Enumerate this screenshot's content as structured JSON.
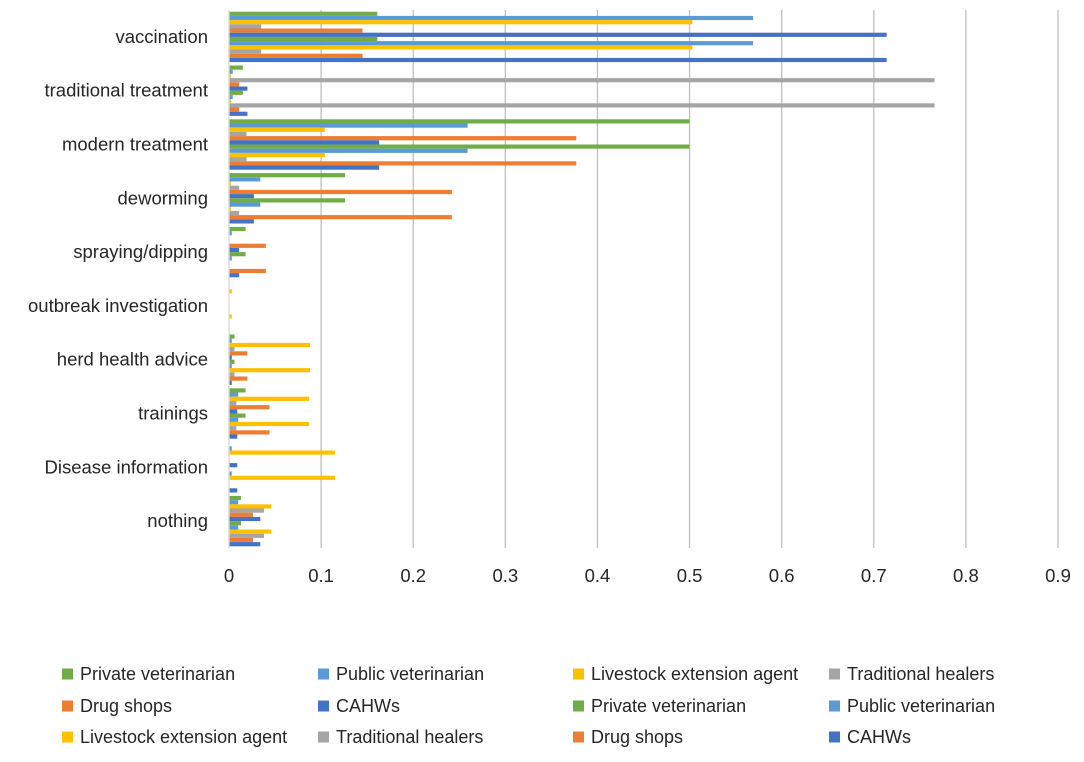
{
  "chart_data": {
    "type": "bar",
    "orientation": "horizontal",
    "title": "",
    "xlabel": "",
    "ylabel": "",
    "xlim": [
      0,
      0.9
    ],
    "x_ticks": [
      0,
      0.1,
      0.2,
      0.3,
      0.4,
      0.5,
      0.6,
      0.7,
      0.8,
      0.9
    ],
    "x_tick_labels": [
      "0",
      "0.1",
      "0.2",
      "0.3",
      "0.4",
      "0.5",
      "0.6",
      "0.7",
      "0.8",
      "0.9"
    ],
    "grid": "vertical",
    "legend_position": "bottom",
    "categories": [
      "vaccination",
      "traditional treatment",
      "modern treatment",
      "deworming",
      "spraying/dipping",
      "outbreak investigation",
      "herd health advice",
      "trainings",
      "Disease information",
      "nothing"
    ],
    "series": [
      {
        "name": "Private veterinarian",
        "color": "#70AD47",
        "values": [
          0.161,
          0.015,
          0.5,
          0.126,
          0.018,
          0.0,
          0.006,
          0.018,
          0.0,
          0.013
        ]
      },
      {
        "name": "Public veterinarian",
        "color": "#5B9BD5",
        "values": [
          0.569,
          0.004,
          0.259,
          0.034,
          0.003,
          0.0,
          0.003,
          0.01,
          0.003,
          0.01
        ]
      },
      {
        "name": "Livestock extension agent",
        "color": "#FFC000",
        "values": [
          0.503,
          0.002,
          0.104,
          0.002,
          0.0,
          0.003,
          0.088,
          0.087,
          0.115,
          0.046
        ]
      },
      {
        "name": "Traditional healers",
        "color": "#A5A5A5",
        "values": [
          0.035,
          0.766,
          0.019,
          0.011,
          0.0,
          0.0,
          0.006,
          0.008,
          0.0,
          0.038
        ]
      },
      {
        "name": "Drug shops",
        "color": "#ED7D31",
        "values": [
          0.145,
          0.011,
          0.377,
          0.242,
          0.04,
          0.0,
          0.02,
          0.044,
          0.0,
          0.026
        ]
      },
      {
        "name": "CAHWs",
        "color": "#4472C4",
        "values": [
          0.714,
          0.02,
          0.163,
          0.027,
          0.011,
          0.0,
          0.003,
          0.009,
          0.009,
          0.034
        ]
      },
      {
        "name": "Private veterinarian",
        "color": "#70AD47",
        "values": [
          0.161,
          0.015,
          0.5,
          0.126,
          0.018,
          0.0,
          0.006,
          0.018,
          0.0,
          0.013
        ]
      },
      {
        "name": "Public veterinarian",
        "color": "#5B9BD5",
        "values": [
          0.569,
          0.004,
          0.259,
          0.034,
          0.003,
          0.0,
          0.003,
          0.01,
          0.003,
          0.01
        ]
      },
      {
        "name": "Livestock extension agent",
        "color": "#FFC000",
        "values": [
          0.503,
          0.002,
          0.104,
          0.002,
          0.0,
          0.003,
          0.088,
          0.087,
          0.115,
          0.046
        ]
      },
      {
        "name": "Traditional healers",
        "color": "#A5A5A5",
        "values": [
          0.035,
          0.766,
          0.019,
          0.011,
          0.0,
          0.0,
          0.006,
          0.008,
          0.0,
          0.038
        ]
      },
      {
        "name": "Drug shops",
        "color": "#ED7D31",
        "values": [
          0.145,
          0.011,
          0.377,
          0.242,
          0.04,
          0.0,
          0.02,
          0.044,
          0.0,
          0.026
        ]
      },
      {
        "name": "CAHWs",
        "color": "#4472C4",
        "values": [
          0.714,
          0.02,
          0.163,
          0.027,
          0.011,
          0.0,
          0.003,
          0.009,
          0.009,
          0.034
        ]
      }
    ]
  }
}
